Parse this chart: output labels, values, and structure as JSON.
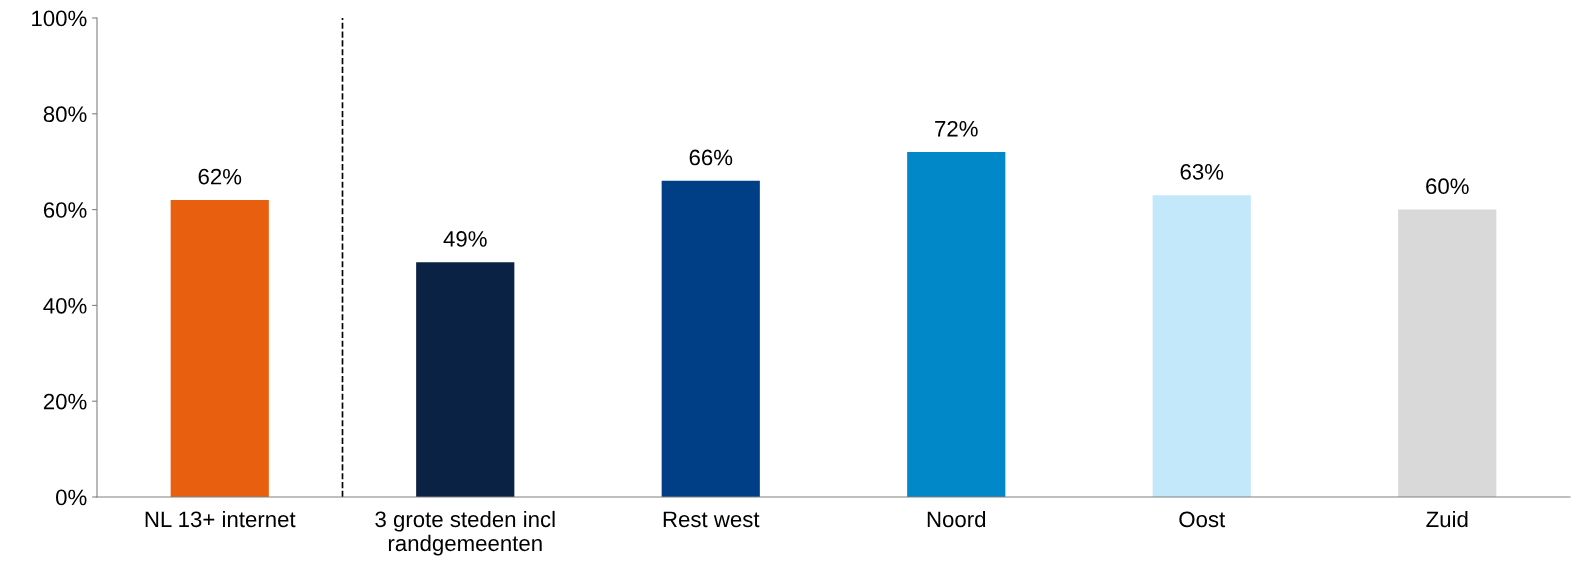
{
  "chart_data": {
    "type": "bar",
    "categories": [
      "NL 13+ internet",
      "3 grote steden incl\nrandgemeenten",
      "Rest west",
      "Noord",
      "Oost",
      "Zuid"
    ],
    "values": [
      62,
      49,
      66,
      72,
      63,
      60
    ],
    "colors": [
      "#e8600f",
      "#0a2244",
      "#003f86",
      "#0088c9",
      "#c3e8fa",
      "#d9d9d9"
    ],
    "value_labels": [
      "62%",
      "49%",
      "66%",
      "72%",
      "63%",
      "60%"
    ],
    "ylim": [
      0,
      100
    ],
    "yticks": [
      {
        "value": 0,
        "label": "0%"
      },
      {
        "value": 20,
        "label": "20%"
      },
      {
        "value": 40,
        "label": "40%"
      },
      {
        "value": 60,
        "label": "60%"
      },
      {
        "value": 80,
        "label": "80%"
      },
      {
        "value": 100,
        "label": "100%"
      }
    ],
    "grid": false,
    "legend": false
  }
}
